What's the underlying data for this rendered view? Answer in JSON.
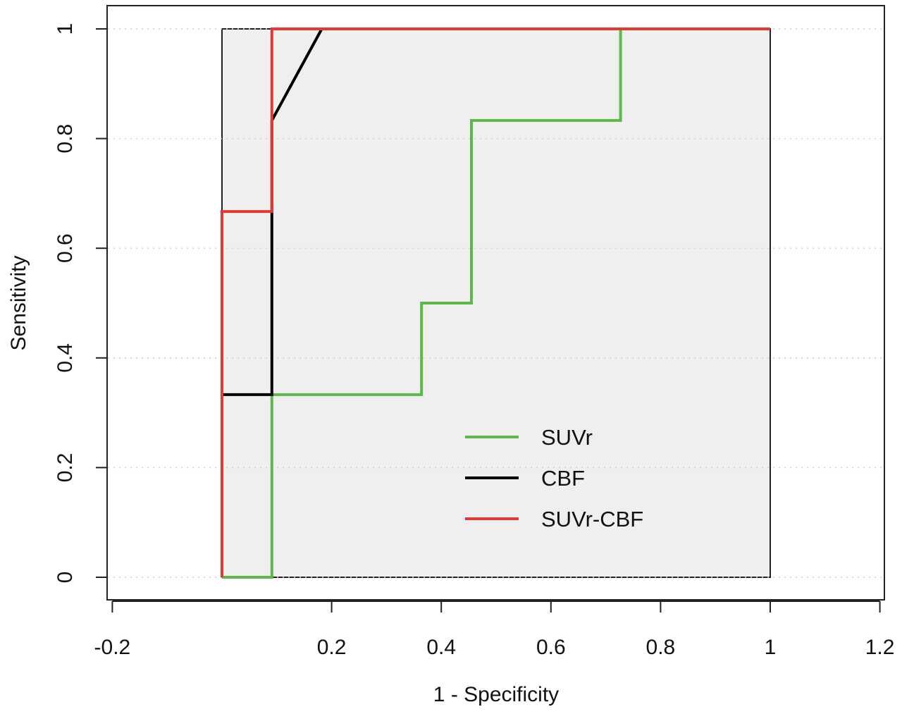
{
  "chart_data": {
    "type": "line",
    "xlabel": "1 - Specificity",
    "ylabel": "Sensitivity",
    "xlim": [
      -0.2,
      1.2
    ],
    "ylim": [
      0,
      1
    ],
    "x_ticks": [
      "-0.2",
      "0.2",
      "0.4",
      "0.6",
      "0.8",
      "1",
      "1.2"
    ],
    "x_tick_values": [
      -0.2,
      0.2,
      0.4,
      0.6,
      0.8,
      1.0,
      1.2
    ],
    "y_ticks": [
      "0",
      "0.2",
      "0.4",
      "0.6",
      "0.8",
      "1"
    ],
    "y_tick_values": [
      0,
      0.2,
      0.4,
      0.6,
      0.8,
      1.0
    ],
    "grid": true,
    "shaded_region": {
      "x": [
        0,
        1
      ],
      "y": [
        0,
        1
      ],
      "color": "#efefef"
    },
    "legend_position": "lower-right",
    "series": [
      {
        "name": "SUVr",
        "color": "#5cb84a",
        "x": [
          0,
          0.091,
          0.091,
          0.364,
          0.364,
          0.455,
          0.455,
          0.727,
          0.727,
          1.0
        ],
        "y": [
          0,
          0,
          0.333,
          0.333,
          0.5,
          0.5,
          0.833,
          0.833,
          1.0,
          1.0
        ]
      },
      {
        "name": "CBF",
        "color": "#000000",
        "x": [
          0,
          0,
          0.091,
          0.091,
          0.182,
          1.0
        ],
        "y": [
          0,
          0.333,
          0.333,
          0.833,
          1.0,
          1.0
        ]
      },
      {
        "name": "SUVr-CBF",
        "color": "#e03a32",
        "x": [
          0,
          0,
          0.091,
          0.091,
          1.0
        ],
        "y": [
          0,
          0.667,
          0.667,
          1.0,
          1.0
        ]
      }
    ]
  }
}
